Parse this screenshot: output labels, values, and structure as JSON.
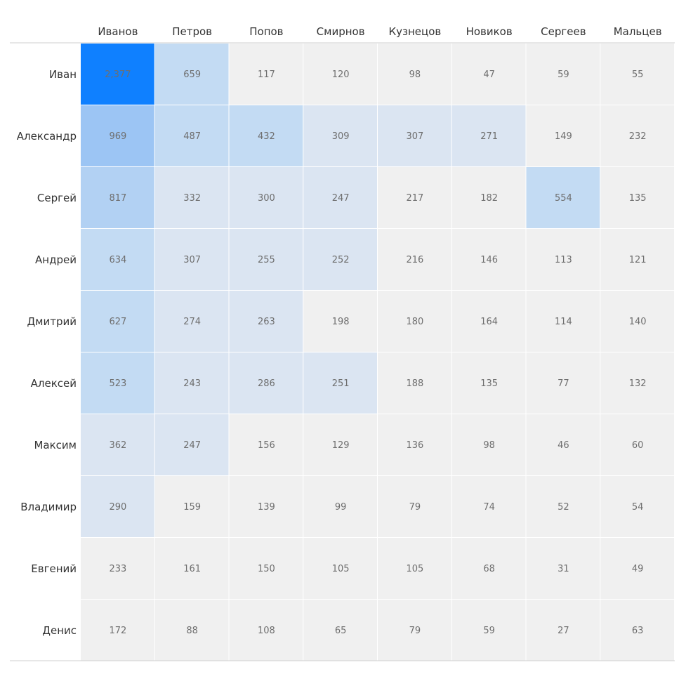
{
  "chart_data": {
    "type": "heatmap",
    "columns": [
      "Иванов",
      "Петров",
      "Попов",
      "Смирнов",
      "Кузнецов",
      "Новиков",
      "Сергеев",
      "Мальцев"
    ],
    "rows": [
      "Иван",
      "Александр",
      "Сергей",
      "Андрей",
      "Дмитрий",
      "Алексей",
      "Максим",
      "Владимир",
      "Евгений",
      "Денис"
    ],
    "values": [
      [
        2377,
        659,
        117,
        120,
        98,
        47,
        59,
        55
      ],
      [
        969,
        487,
        432,
        309,
        307,
        271,
        149,
        232
      ],
      [
        817,
        332,
        300,
        247,
        217,
        182,
        554,
        135
      ],
      [
        634,
        307,
        255,
        252,
        216,
        146,
        113,
        121
      ],
      [
        627,
        274,
        263,
        198,
        180,
        164,
        114,
        140
      ],
      [
        523,
        243,
        286,
        251,
        188,
        135,
        77,
        132
      ],
      [
        362,
        247,
        156,
        129,
        136,
        98,
        46,
        60
      ],
      [
        290,
        159,
        139,
        99,
        79,
        74,
        52,
        54
      ],
      [
        233,
        161,
        150,
        105,
        105,
        68,
        31,
        49
      ],
      [
        172,
        88,
        108,
        65,
        79,
        59,
        27,
        63
      ]
    ],
    "value_format": "thousands-comma",
    "color_scale": {
      "base": "#f0f0f0",
      "light": "#dbe5f2",
      "mid": "#c3dbf3",
      "strong": "#9cc5f4",
      "max": "#0f80ff"
    },
    "grid": false,
    "legend": "none"
  }
}
